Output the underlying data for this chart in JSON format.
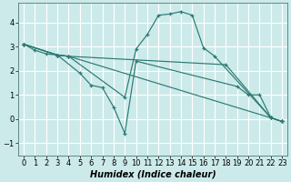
{
  "bg_color": "#cdeaea",
  "grid_color": "#ffffff",
  "line_color": "#2a7a72",
  "xlabel": "Humidex (Indice chaleur)",
  "xlabel_fontsize": 7,
  "tick_fontsize": 6,
  "xlim": [
    -0.5,
    23.5
  ],
  "ylim": [
    -1.5,
    4.8
  ],
  "xticks": [
    0,
    1,
    2,
    3,
    4,
    5,
    6,
    7,
    8,
    9,
    10,
    11,
    12,
    13,
    14,
    15,
    16,
    17,
    18,
    19,
    20,
    21,
    22,
    23
  ],
  "yticks": [
    -1,
    0,
    1,
    2,
    3,
    4
  ],
  "lines": [
    {
      "x": [
        0,
        1,
        2,
        3,
        4,
        18,
        22,
        23
      ],
      "y": [
        3.1,
        2.85,
        2.7,
        2.65,
        2.6,
        2.25,
        0.05,
        -0.1
      ]
    },
    {
      "x": [
        0,
        3,
        4,
        9,
        10,
        11,
        12,
        13,
        14,
        15,
        16,
        17,
        22,
        23
      ],
      "y": [
        3.1,
        2.65,
        2.6,
        0.9,
        2.9,
        3.5,
        4.3,
        4.35,
        4.45,
        4.3,
        2.95,
        2.6,
        0.05,
        -0.1
      ]
    },
    {
      "x": [
        0,
        3,
        5,
        6,
        7,
        8,
        9,
        10,
        19,
        20,
        21,
        22,
        23
      ],
      "y": [
        3.1,
        2.65,
        1.9,
        1.4,
        1.3,
        0.5,
        -0.6,
        2.4,
        1.35,
        1.0,
        1.0,
        0.05,
        -0.1
      ]
    },
    {
      "x": [
        0,
        3,
        4,
        22,
        23
      ],
      "y": [
        3.1,
        2.65,
        2.6,
        0.05,
        -0.1
      ]
    }
  ]
}
